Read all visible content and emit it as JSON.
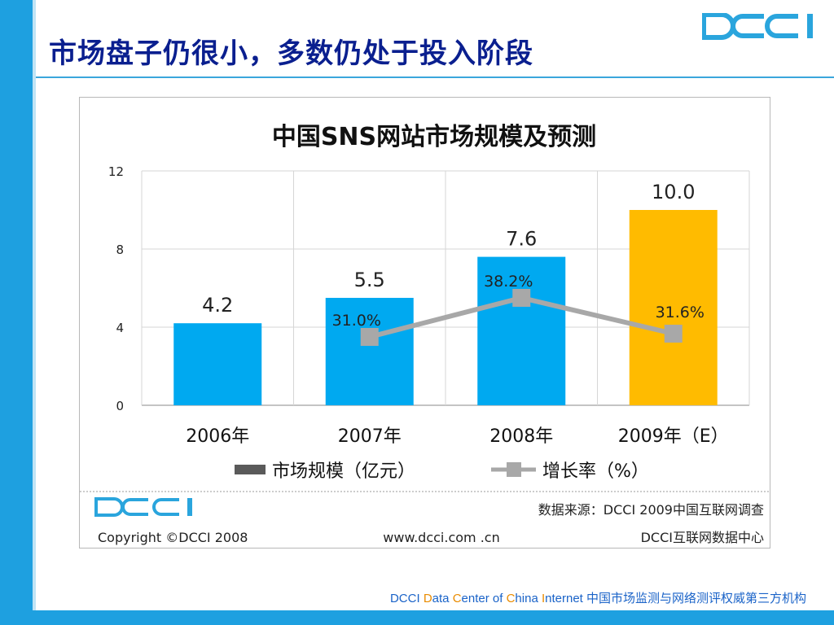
{
  "slide": {
    "title": "市场盘子仍很小，多数仍处于投入阶段",
    "footer": {
      "p1": "DCCI  ",
      "d": "D",
      "p2": "ata ",
      "c1": "C",
      "p3": "enter of  ",
      "c2": "C",
      "p4": "hina ",
      "i": "I",
      "p5": "nternet 中国市场监测与网络测评权威第三方机构"
    }
  },
  "logo_text": "DCCI",
  "chart_data": {
    "type": "bar",
    "title": "中国SNS网站市场规模及预测",
    "categories": [
      "2006年",
      "2007年",
      "2008年",
      "2009年（E）"
    ],
    "ylim": [
      0,
      12
    ],
    "yticks": [
      0,
      4,
      8,
      12
    ],
    "grid": true,
    "series": [
      {
        "name": "市场规模（亿元）",
        "type": "bar",
        "values": [
          4.2,
          5.5,
          7.6,
          10.0
        ],
        "value_labels": [
          "4.2",
          "5.5",
          "7.6",
          "10.0"
        ],
        "colors": [
          "#00a9f0",
          "#00a9f0",
          "#00a9f0",
          "#ffbb00"
        ]
      },
      {
        "name": "增长率（%）",
        "type": "line",
        "values": [
          null,
          31.0,
          38.2,
          31.6
        ],
        "value_labels": [
          "",
          "31.0%",
          "38.2%",
          "31.6%"
        ],
        "color": "#a8a8a8"
      }
    ],
    "legend": {
      "position": "bottom"
    },
    "footer": {
      "source": "数据来源：DCCI  2009中国互联网调查",
      "copyright": "Copyright  ©DCCI  2008",
      "url": "www.dcci.com .cn",
      "org": "DCCI互联网数据中心"
    }
  }
}
